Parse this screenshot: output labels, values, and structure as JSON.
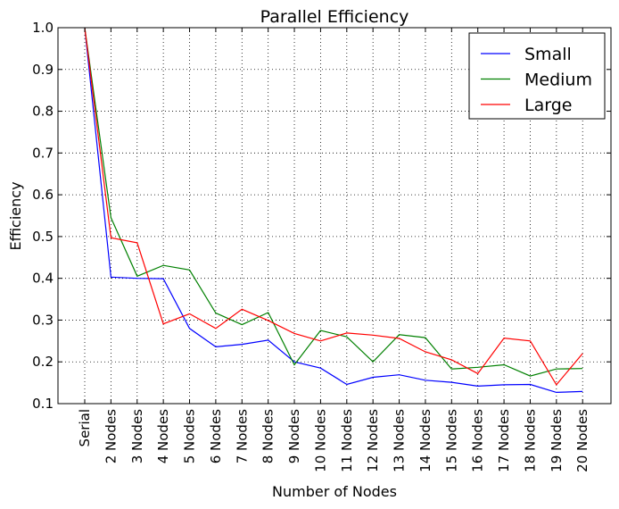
{
  "chart_data": {
    "type": "line",
    "title": "Parallel Efficiency",
    "xlabel": "Number of Nodes",
    "ylabel": "Efficiency",
    "ylim": [
      0.1,
      1.0
    ],
    "yticks": [
      "0.1",
      "0.2",
      "0.3",
      "0.4",
      "0.5",
      "0.6",
      "0.7",
      "0.8",
      "0.9",
      "1.0"
    ],
    "grid": true,
    "legend_position": "top-right",
    "categories": [
      "Serial",
      "2 Nodes",
      "3 Nodes",
      "4 Nodes",
      "5 Nodes",
      "6 Nodes",
      "7 Nodes",
      "8 Nodes",
      "9 Nodes",
      "10 Nodes",
      "11 Nodes",
      "12 Nodes",
      "13 Nodes",
      "14 Nodes",
      "15 Nodes",
      "16 Nodes",
      "17 Nodes",
      "18 Nodes",
      "19 Nodes",
      "20 Nodes"
    ],
    "series": [
      {
        "name": "Small",
        "color": "#0000ff",
        "values": [
          1.0,
          0.403,
          0.4,
          0.399,
          0.28,
          0.236,
          0.242,
          0.252,
          0.2,
          0.185,
          0.146,
          0.163,
          0.169,
          0.156,
          0.151,
          0.142,
          0.145,
          0.146,
          0.127,
          0.129
        ]
      },
      {
        "name": "Medium",
        "color": "#008000",
        "values": [
          1.0,
          0.545,
          0.405,
          0.431,
          0.42,
          0.317,
          0.289,
          0.318,
          0.193,
          0.275,
          0.26,
          0.2,
          0.265,
          0.258,
          0.183,
          0.187,
          0.193,
          0.166,
          0.183,
          0.184
        ]
      },
      {
        "name": "Large",
        "color": "#ff0000",
        "values": [
          1.0,
          0.497,
          0.485,
          0.291,
          0.315,
          0.28,
          0.326,
          0.299,
          0.268,
          0.25,
          0.269,
          0.264,
          0.256,
          0.224,
          0.205,
          0.172,
          0.257,
          0.25,
          0.145,
          0.22
        ]
      }
    ]
  }
}
